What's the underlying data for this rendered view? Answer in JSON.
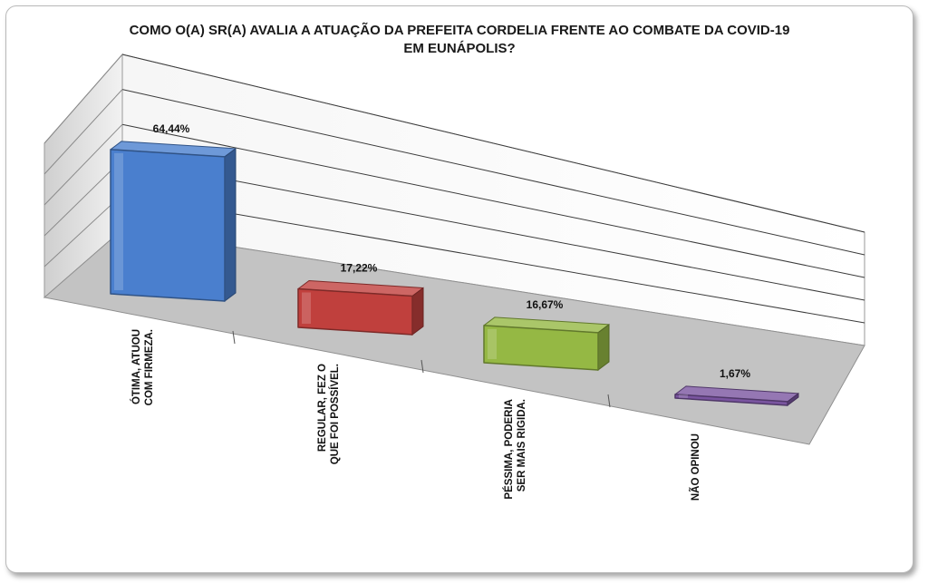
{
  "chart_data": {
    "type": "bar",
    "title_lines": [
      "COMO O(A) SR(A) AVALIA A ATUAÇÃO DA PREFEITA CORDELIA FRENTE AO COMBATE DA COVID-19",
      "EM EUNÁPOLIS?"
    ],
    "categories": [
      [
        "ÓTIMA, ATUOU",
        "COM FIRMEZA."
      ],
      [
        "REGULAR, FEZ O",
        "QUE FOI POSSÍVEL."
      ],
      [
        "PÉSSIMA, PODERIA",
        "SER MAIS RIGIDA."
      ],
      [
        "NÃO OPINOU"
      ]
    ],
    "values": [
      64.44,
      17.22,
      16.67,
      1.67
    ],
    "labels": [
      "64,44%",
      "17,22%",
      "16,67%",
      "1,67%"
    ],
    "colors": [
      "#4a7fce",
      "#c0403d",
      "#95b844",
      "#7a55a0"
    ],
    "ylim": [
      0,
      100
    ],
    "grid": true,
    "style": "3d-perspective"
  }
}
